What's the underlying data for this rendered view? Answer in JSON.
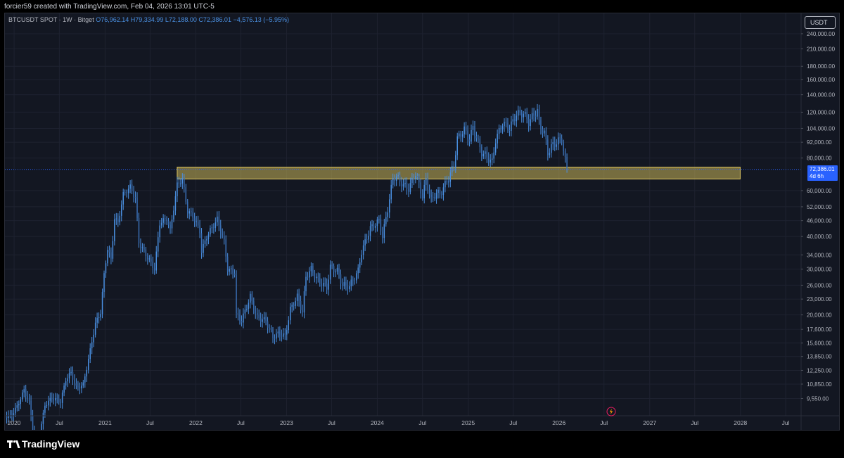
{
  "header": {
    "attribution": "forcier59 created with TradingView.com, Feb 04, 2026 13:01 UTC-5"
  },
  "legend": {
    "symbol": "BTCUSDT SPOT · 1W · Bitget",
    "open": "O76,962.14",
    "high": "H79,334.99",
    "low": "L72,188.00",
    "close": "C72,386.01",
    "change": "−4,576.13 (−5.95%)"
  },
  "currency_label": "USDT",
  "price_badge": {
    "price": "72,386.01",
    "countdown": "4d 6h"
  },
  "footer": {
    "brand": "TradingView"
  },
  "colors": {
    "candle": "#4a90e2",
    "zone_fill": "#c9b458",
    "zone_border": "#e0c860",
    "background": "#131722"
  },
  "chart_data": {
    "type": "candlestick",
    "scale": "log",
    "ylim": [
      8200,
      270000
    ],
    "xlim": [
      "2019-11-25",
      "2028-09-01"
    ],
    "grid": true,
    "y_ticks": [
      "9,550.00",
      "10,850.00",
      "12,250.00",
      "13,850.00",
      "15,600.00",
      "17,600.00",
      "20,000.00",
      "23,000.00",
      "26,000.00",
      "30,000.00",
      "34,000.00",
      "40,000.00",
      "46,000.00",
      "52,000.00",
      "60,000.00",
      "80,000.00",
      "92,000.00",
      "104,000.00",
      "120,000.00",
      "140,000.00",
      "160,000.00",
      "180,000.00",
      "210,000.00",
      "240,000.00"
    ],
    "y_tick_values": [
      9550,
      10850,
      12250,
      13850,
      15600,
      17600,
      20000,
      23000,
      26000,
      30000,
      34000,
      40000,
      46000,
      52000,
      60000,
      80000,
      92000,
      104000,
      120000,
      140000,
      160000,
      180000,
      210000,
      240000
    ],
    "x_ticks": [
      {
        "label": "2020",
        "date": "2020-01-01"
      },
      {
        "label": "Jul",
        "date": "2020-07-01"
      },
      {
        "label": "2021",
        "date": "2021-01-01"
      },
      {
        "label": "Jul",
        "date": "2021-07-01"
      },
      {
        "label": "2022",
        "date": "2022-01-01"
      },
      {
        "label": "Jul",
        "date": "2022-07-01"
      },
      {
        "label": "2023",
        "date": "2023-01-01"
      },
      {
        "label": "Jul",
        "date": "2023-07-01"
      },
      {
        "label": "2024",
        "date": "2024-01-01"
      },
      {
        "label": "Jul",
        "date": "2024-07-01"
      },
      {
        "label": "2025",
        "date": "2025-01-01"
      },
      {
        "label": "Jul",
        "date": "2025-07-01"
      },
      {
        "label": "2026",
        "date": "2026-01-01"
      },
      {
        "label": "Jul",
        "date": "2026-07-01"
      },
      {
        "label": "2027",
        "date": "2027-01-01"
      },
      {
        "label": "Jul",
        "date": "2027-07-01"
      },
      {
        "label": "2028",
        "date": "2028-01-01"
      },
      {
        "label": "Jul",
        "date": "2028-07-01"
      }
    ],
    "current_price": 72386.01,
    "zone": {
      "from_date": "2021-10-18",
      "to_date": "2027-12-31",
      "low": 66500,
      "high": 73800
    },
    "weekly_close_path": [
      [
        "2019-11-25",
        8200
      ],
      [
        "2019-12-16",
        8100
      ],
      [
        "2020-01-13",
        8900
      ],
      [
        "2020-02-10",
        10300
      ],
      [
        "2020-03-02",
        9200
      ],
      [
        "2020-03-23",
        6500
      ],
      [
        "2020-04-13",
        7000
      ],
      [
        "2020-05-04",
        9000
      ],
      [
        "2020-06-01",
        9600
      ],
      [
        "2020-07-06",
        9300
      ],
      [
        "2020-07-27",
        11300
      ],
      [
        "2020-08-17",
        12000
      ],
      [
        "2020-09-07",
        10500
      ],
      [
        "2020-10-05",
        10800
      ],
      [
        "2020-10-26",
        13500
      ],
      [
        "2020-11-23",
        18500
      ],
      [
        "2020-12-14",
        20500
      ],
      [
        "2020-12-28",
        28500
      ],
      [
        "2021-01-11",
        36000
      ],
      [
        "2021-01-25",
        32500
      ],
      [
        "2021-02-08",
        47000
      ],
      [
        "2021-02-22",
        45000
      ],
      [
        "2021-03-15",
        58000
      ],
      [
        "2021-04-12",
        62000
      ],
      [
        "2021-05-03",
        56000
      ],
      [
        "2021-05-17",
        38000
      ],
      [
        "2021-06-07",
        35000
      ],
      [
        "2021-07-19",
        30000
      ],
      [
        "2021-08-09",
        45000
      ],
      [
        "2021-09-06",
        47000
      ],
      [
        "2021-09-20",
        42000
      ],
      [
        "2021-10-18",
        63000
      ],
      [
        "2021-11-08",
        66500
      ],
      [
        "2021-11-29",
        50000
      ],
      [
        "2021-12-20",
        48000
      ],
      [
        "2022-01-17",
        42000
      ],
      [
        "2022-01-24",
        35000
      ],
      [
        "2022-02-14",
        40000
      ],
      [
        "2022-03-28",
        46500
      ],
      [
        "2022-04-25",
        38000
      ],
      [
        "2022-05-09",
        30000
      ],
      [
        "2022-06-06",
        29000
      ],
      [
        "2022-06-13",
        20000
      ],
      [
        "2022-07-04",
        19000
      ],
      [
        "2022-08-08",
        23500
      ],
      [
        "2022-09-05",
        19500
      ],
      [
        "2022-10-10",
        19000
      ],
      [
        "2022-11-07",
        16500
      ],
      [
        "2022-12-05",
        17000
      ],
      [
        "2022-12-26",
        16500
      ],
      [
        "2023-01-16",
        21000
      ],
      [
        "2023-02-13",
        23500
      ],
      [
        "2023-03-06",
        20500
      ],
      [
        "2023-03-20",
        28000
      ],
      [
        "2023-04-10",
        30000
      ],
      [
        "2023-05-08",
        27000
      ],
      [
        "2023-06-12",
        25500
      ],
      [
        "2023-06-26",
        30500
      ],
      [
        "2023-07-24",
        29500
      ],
      [
        "2023-08-14",
        26000
      ],
      [
        "2023-09-11",
        25800
      ],
      [
        "2023-10-16",
        29500
      ],
      [
        "2023-10-30",
        35000
      ],
      [
        "2023-12-04",
        43000
      ],
      [
        "2024-01-08",
        46000
      ],
      [
        "2024-01-22",
        40000
      ],
      [
        "2024-02-12",
        51000
      ],
      [
        "2024-03-04",
        67000
      ],
      [
        "2024-03-18",
        68000
      ],
      [
        "2024-04-15",
        63000
      ],
      [
        "2024-05-06",
        61000
      ],
      [
        "2024-06-03",
        70000
      ],
      [
        "2024-07-01",
        57000
      ],
      [
        "2024-07-15",
        66000
      ],
      [
        "2024-08-05",
        55000
      ],
      [
        "2024-08-26",
        59000
      ],
      [
        "2024-09-09",
        58000
      ],
      [
        "2024-10-14",
        67000
      ],
      [
        "2024-11-04",
        75000
      ],
      [
        "2024-11-18",
        95000
      ],
      [
        "2024-12-16",
        103000
      ],
      [
        "2025-01-06",
        94000
      ],
      [
        "2025-01-20",
        105000
      ],
      [
        "2025-02-24",
        84000
      ],
      [
        "2025-03-10",
        82000
      ],
      [
        "2025-04-07",
        77000
      ],
      [
        "2025-04-21",
        94000
      ],
      [
        "2025-05-19",
        109000
      ],
      [
        "2025-06-16",
        104000
      ],
      [
        "2025-07-14",
        118000
      ],
      [
        "2025-08-11",
        119000
      ],
      [
        "2025-09-01",
        110000
      ],
      [
        "2025-10-06",
        122000
      ],
      [
        "2025-10-13",
        108000
      ],
      [
        "2025-11-03",
        100000
      ],
      [
        "2025-11-17",
        84000
      ],
      [
        "2025-12-08",
        90000
      ],
      [
        "2026-01-12",
        95000
      ],
      [
        "2026-01-26",
        78000
      ],
      [
        "2026-02-02",
        72386
      ]
    ]
  }
}
